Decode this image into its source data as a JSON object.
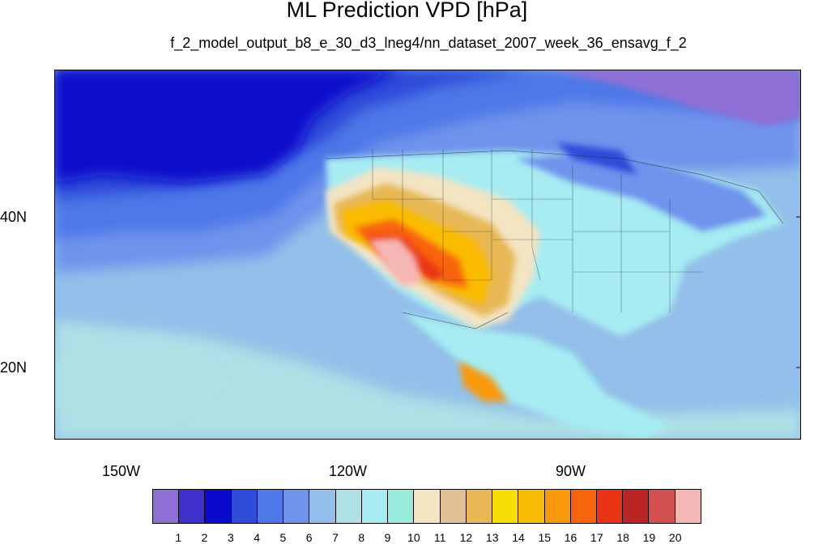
{
  "title": "ML Prediction VPD [hPa]",
  "subtitle": "f_2_model_output_b8_e_30_d3_lneg4/nn_dataset_2007_week_36_ensavg_f_2",
  "lon_labels": [
    "150W",
    "120W",
    "90W"
  ],
  "lat_labels": [
    "40N",
    "20N"
  ],
  "colorbar": {
    "colors": [
      "#8e6fd6",
      "#3f2fcc",
      "#0a0acc",
      "#2e4bd9",
      "#4e78e8",
      "#6f93ec",
      "#93bfea",
      "#aee0e6",
      "#a6ecf2",
      "#98ecde",
      "#f3e4c4",
      "#dfc195",
      "#e7b855",
      "#f9dd06",
      "#fbbc06",
      "#f99a0c",
      "#f8640b",
      "#e93413",
      "#b92424",
      "#d25050",
      "#f5b6b6"
    ],
    "labels": [
      "1",
      "2",
      "3",
      "4",
      "5",
      "6",
      "7",
      "8",
      "9",
      "10",
      "11",
      "12",
      "13",
      "14",
      "15",
      "16",
      "17",
      "18",
      "19",
      "20"
    ]
  }
}
